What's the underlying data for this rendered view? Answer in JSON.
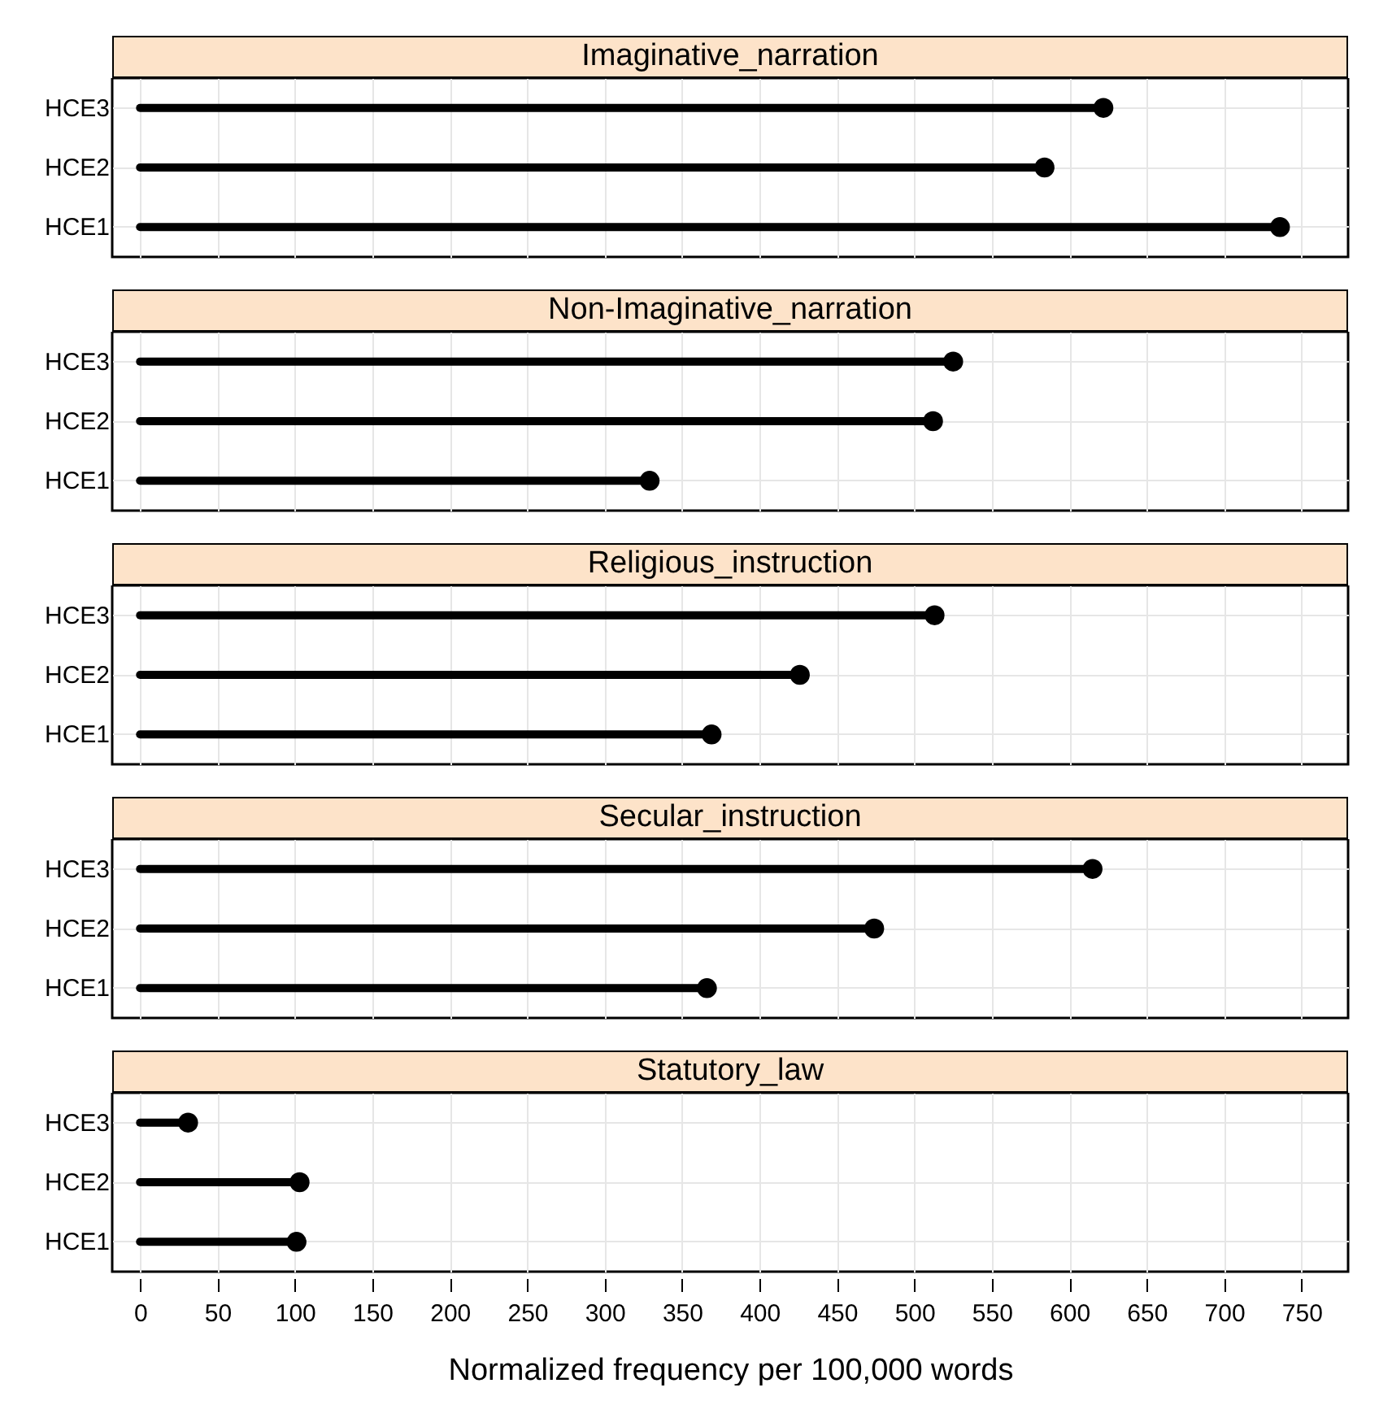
{
  "chart_data": [
    {
      "type": "lollipop",
      "orientation": "horizontal",
      "title": "Imaginative_narration",
      "categories": [
        "HCE3",
        "HCE2",
        "HCE1"
      ],
      "values": [
        622,
        584,
        736
      ],
      "color": "#000000",
      "marker": "circle",
      "xlim": [
        -18,
        780
      ],
      "xticks": [
        0,
        50,
        100,
        150,
        200,
        250,
        300,
        350,
        400,
        450,
        500,
        550,
        600,
        650,
        700,
        750
      ],
      "grid": true,
      "tick_labels": "y"
    },
    {
      "type": "lollipop",
      "orientation": "horizontal",
      "title": "Non-Imaginative_narration",
      "categories": [
        "HCE3",
        "HCE2",
        "HCE1"
      ],
      "values": [
        525,
        512,
        329
      ],
      "color": "#000000",
      "marker": "circle",
      "xlim": [
        -18,
        780
      ],
      "xticks": [
        0,
        50,
        100,
        150,
        200,
        250,
        300,
        350,
        400,
        450,
        500,
        550,
        600,
        650,
        700,
        750
      ],
      "grid": true,
      "tick_labels": "y"
    },
    {
      "type": "lollipop",
      "orientation": "horizontal",
      "title": "Religious_instruction",
      "categories": [
        "HCE3",
        "HCE2",
        "HCE1"
      ],
      "values": [
        513,
        426,
        369
      ],
      "color": "#000000",
      "marker": "circle",
      "xlim": [
        -18,
        780
      ],
      "xticks": [
        0,
        50,
        100,
        150,
        200,
        250,
        300,
        350,
        400,
        450,
        500,
        550,
        600,
        650,
        700,
        750
      ],
      "grid": true,
      "tick_labels": "y"
    },
    {
      "type": "lollipop",
      "orientation": "horizontal",
      "title": "Secular_instruction",
      "categories": [
        "HCE3",
        "HCE2",
        "HCE1"
      ],
      "values": [
        615,
        474,
        366
      ],
      "color": "#000000",
      "marker": "circle",
      "xlim": [
        -18,
        780
      ],
      "xticks": [
        0,
        50,
        100,
        150,
        200,
        250,
        300,
        350,
        400,
        450,
        500,
        550,
        600,
        650,
        700,
        750
      ],
      "grid": true,
      "tick_labels": "y"
    },
    {
      "type": "lollipop",
      "orientation": "horizontal",
      "title": "Statutory_law",
      "categories": [
        "HCE3",
        "HCE2",
        "HCE1"
      ],
      "values": [
        31,
        103,
        101
      ],
      "color": "#000000",
      "marker": "circle",
      "xlim": [
        -18,
        780
      ],
      "xticks": [
        0,
        50,
        100,
        150,
        200,
        250,
        300,
        350,
        400,
        450,
        500,
        550,
        600,
        650,
        700,
        750
      ],
      "grid": true,
      "xlabel": "Normalized frequency per 100,000 words"
    }
  ]
}
